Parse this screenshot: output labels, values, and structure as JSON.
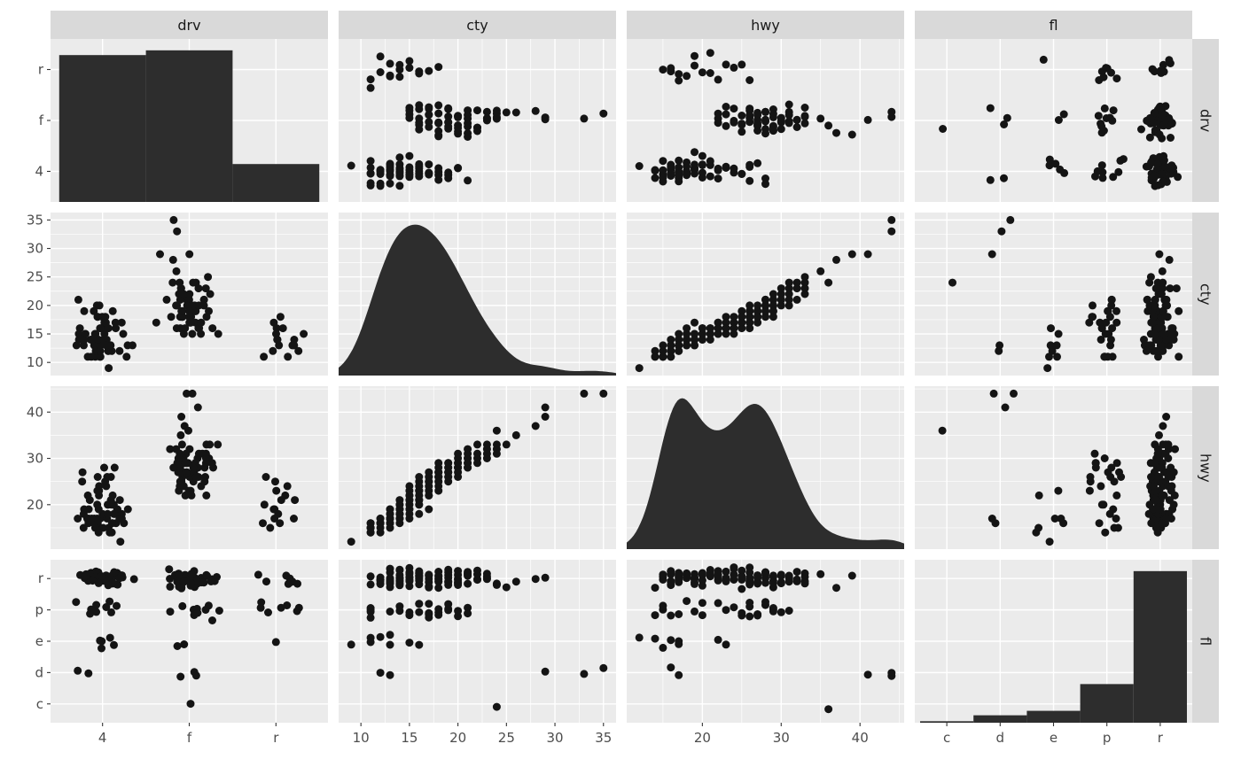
{
  "matrix": {
    "variables": [
      "drv",
      "cty",
      "hwy",
      "fl"
    ],
    "top_strips": [
      "drv",
      "cty",
      "hwy",
      "fl"
    ],
    "right_strips": [
      "drv",
      "cty",
      "hwy",
      "fl"
    ]
  },
  "axes": {
    "drv": {
      "type": "discrete",
      "categories": [
        "4",
        "f",
        "r"
      ]
    },
    "cty": {
      "type": "continuous",
      "ticks": [
        10,
        15,
        20,
        25,
        30,
        35
      ],
      "minor": [
        12.5,
        17.5,
        22.5,
        27.5,
        32.5
      ],
      "domain": [
        7.7,
        36.3
      ]
    },
    "hwy": {
      "type": "continuous",
      "ticks": [
        20,
        30,
        40
      ],
      "minor": [
        15,
        25,
        35,
        45
      ],
      "domain": [
        10.4,
        45.6
      ]
    },
    "fl": {
      "type": "discrete",
      "categories": [
        "c",
        "d",
        "e",
        "p",
        "r"
      ]
    }
  },
  "style": {
    "background": "#FFFFFF",
    "panel_bg": "#EBEBEB",
    "grid_major": "#FFFFFF",
    "grid_minor": "#FFFFFF",
    "strip_bg": "#D9D9D9",
    "strip_text": "#1A1A1A",
    "point": "#141414",
    "fill": "#2D2D2D",
    "tick_text": "#4D4D4D",
    "tick_mark": "#333333"
  },
  "chart_data": {
    "type": "scatterplot-matrix",
    "title": "",
    "columns": [
      "drv",
      "cty",
      "hwy",
      "fl"
    ],
    "diag": {
      "discrete": "bar",
      "continuous": "density",
      "cty_bandwidth": 1.8,
      "hwy_bandwidth": 1.9
    },
    "category_counts": {
      "drv": {
        "4": 62,
        "f": 64,
        "r": 16
      },
      "fl": {
        "c": 1,
        "d": 5,
        "e": 8,
        "p": 26,
        "r": 102
      }
    },
    "dataset": {
      "fields": [
        "drv",
        "cty",
        "hwy",
        "fl"
      ],
      "rows": [
        [
          "4",
          9,
          12,
          "e"
        ],
        [
          "4",
          11,
          15,
          "e"
        ],
        [
          "4",
          11,
          14,
          "e"
        ],
        [
          "4",
          12,
          16,
          "e"
        ],
        [
          "4",
          13,
          17,
          "e"
        ],
        [
          "4",
          13,
          17,
          "d"
        ],
        [
          "4",
          12,
          16,
          "d"
        ],
        [
          "4",
          11,
          15,
          "r"
        ],
        [
          "4",
          11,
          16,
          "r"
        ],
        [
          "4",
          11,
          15,
          "p"
        ],
        [
          "4",
          12,
          16,
          "r"
        ],
        [
          "4",
          12,
          17,
          "r"
        ],
        [
          "4",
          12,
          16,
          "r"
        ],
        [
          "4",
          12,
          15,
          "r"
        ],
        [
          "4",
          13,
          16,
          "r"
        ],
        [
          "4",
          13,
          17,
          "r"
        ],
        [
          "4",
          13,
          17,
          "r"
        ],
        [
          "4",
          13,
          18,
          "r"
        ],
        [
          "4",
          13,
          17,
          "r"
        ],
        [
          "4",
          13,
          16,
          "r"
        ],
        [
          "4",
          14,
          17,
          "r"
        ],
        [
          "4",
          14,
          18,
          "r"
        ],
        [
          "4",
          14,
          19,
          "r"
        ],
        [
          "4",
          14,
          17,
          "r"
        ],
        [
          "4",
          14,
          18,
          "r"
        ],
        [
          "4",
          14,
          17,
          "p"
        ],
        [
          "4",
          14,
          19,
          "r"
        ],
        [
          "4",
          14,
          18,
          "r"
        ],
        [
          "4",
          15,
          19,
          "r"
        ],
        [
          "4",
          15,
          20,
          "r"
        ],
        [
          "4",
          15,
          18,
          "r"
        ],
        [
          "4",
          15,
          20,
          "p"
        ],
        [
          "4",
          15,
          19,
          "r"
        ],
        [
          "4",
          15,
          21,
          "r"
        ],
        [
          "4",
          16,
          20,
          "r"
        ],
        [
          "4",
          16,
          21,
          "r"
        ],
        [
          "4",
          16,
          22,
          "r"
        ],
        [
          "4",
          16,
          20,
          "p"
        ],
        [
          "4",
          16,
          21,
          "r"
        ],
        [
          "4",
          17,
          22,
          "r"
        ],
        [
          "4",
          17,
          23,
          "r"
        ],
        [
          "4",
          17,
          22,
          "r"
        ],
        [
          "4",
          17,
          24,
          "p"
        ],
        [
          "4",
          18,
          24,
          "r"
        ],
        [
          "4",
          18,
          25,
          "r"
        ],
        [
          "4",
          18,
          23,
          "r"
        ],
        [
          "4",
          18,
          26,
          "p"
        ],
        [
          "4",
          19,
          25,
          "r"
        ],
        [
          "4",
          19,
          26,
          "r"
        ],
        [
          "4",
          19,
          27,
          "p"
        ],
        [
          "4",
          20,
          26,
          "r"
        ],
        [
          "4",
          20,
          28,
          "r"
        ],
        [
          "4",
          21,
          28,
          "p"
        ],
        [
          "4",
          14,
          16,
          "r"
        ],
        [
          "4",
          13,
          15,
          "r"
        ],
        [
          "4",
          12,
          14,
          "r"
        ],
        [
          "4",
          15,
          17,
          "r"
        ],
        [
          "4",
          16,
          18,
          "r"
        ],
        [
          "4",
          17,
          19,
          "r"
        ],
        [
          "4",
          11,
          14,
          "p"
        ],
        [
          "4",
          14,
          20,
          "r"
        ],
        [
          "4",
          13,
          19,
          "r"
        ],
        [
          "f",
          15,
          22,
          "r"
        ],
        [
          "f",
          15,
          23,
          "r"
        ],
        [
          "f",
          16,
          24,
          "r"
        ],
        [
          "f",
          16,
          25,
          "r"
        ],
        [
          "f",
          16,
          23,
          "r"
        ],
        [
          "f",
          17,
          25,
          "r"
        ],
        [
          "f",
          17,
          26,
          "r"
        ],
        [
          "f",
          17,
          24,
          "r"
        ],
        [
          "f",
          17,
          27,
          "r"
        ],
        [
          "f",
          18,
          26,
          "r"
        ],
        [
          "f",
          18,
          27,
          "r"
        ],
        [
          "f",
          18,
          25,
          "r"
        ],
        [
          "f",
          18,
          28,
          "r"
        ],
        [
          "f",
          18,
          26,
          "r"
        ],
        [
          "f",
          18,
          27,
          "r"
        ],
        [
          "f",
          19,
          27,
          "r"
        ],
        [
          "f",
          19,
          28,
          "r"
        ],
        [
          "f",
          19,
          26,
          "r"
        ],
        [
          "f",
          19,
          29,
          "r"
        ],
        [
          "f",
          19,
          27,
          "r"
        ],
        [
          "f",
          20,
          28,
          "r"
        ],
        [
          "f",
          20,
          29,
          "r"
        ],
        [
          "f",
          20,
          27,
          "r"
        ],
        [
          "f",
          20,
          30,
          "r"
        ],
        [
          "f",
          20,
          28,
          "r"
        ],
        [
          "f",
          21,
          29,
          "r"
        ],
        [
          "f",
          21,
          30,
          "r"
        ],
        [
          "f",
          21,
          28,
          "r"
        ],
        [
          "f",
          21,
          31,
          "r"
        ],
        [
          "f",
          21,
          29,
          "r"
        ],
        [
          "f",
          22,
          30,
          "r"
        ],
        [
          "f",
          22,
          31,
          "r"
        ],
        [
          "f",
          22,
          29,
          "r"
        ],
        [
          "f",
          23,
          31,
          "r"
        ],
        [
          "f",
          23,
          32,
          "r"
        ],
        [
          "f",
          23,
          30,
          "r"
        ],
        [
          "f",
          24,
          32,
          "r"
        ],
        [
          "f",
          24,
          33,
          "r"
        ],
        [
          "f",
          24,
          31,
          "r"
        ],
        [
          "f",
          25,
          33,
          "r"
        ],
        [
          "f",
          26,
          35,
          "r"
        ],
        [
          "f",
          28,
          37,
          "r"
        ],
        [
          "f",
          29,
          39,
          "r"
        ],
        [
          "f",
          33,
          44,
          "d"
        ],
        [
          "f",
          35,
          44,
          "d"
        ],
        [
          "f",
          29,
          41,
          "d"
        ],
        [
          "f",
          24,
          36,
          "c"
        ],
        [
          "f",
          15,
          22,
          "e"
        ],
        [
          "f",
          16,
          23,
          "e"
        ],
        [
          "f",
          16,
          26,
          "p"
        ],
        [
          "f",
          17,
          26,
          "p"
        ],
        [
          "f",
          18,
          27,
          "p"
        ],
        [
          "f",
          19,
          28,
          "p"
        ],
        [
          "f",
          20,
          29,
          "p"
        ],
        [
          "f",
          21,
          30,
          "p"
        ],
        [
          "f",
          19,
          29,
          "p"
        ],
        [
          "f",
          18,
          29,
          "p"
        ],
        [
          "f",
          20,
          31,
          "p"
        ],
        [
          "f",
          17,
          25,
          "p"
        ],
        [
          "f",
          21,
          32,
          "r"
        ],
        [
          "f",
          22,
          33,
          "r"
        ],
        [
          "f",
          23,
          33,
          "r"
        ],
        [
          "f",
          16,
          22,
          "r"
        ],
        [
          "f",
          15,
          24,
          "r"
        ],
        [
          "r",
          11,
          15,
          "p"
        ],
        [
          "r",
          11,
          16,
          "p"
        ],
        [
          "r",
          12,
          17,
          "r"
        ],
        [
          "r",
          13,
          19,
          "r"
        ],
        [
          "r",
          13,
          18,
          "p"
        ],
        [
          "r",
          14,
          20,
          "r"
        ],
        [
          "r",
          14,
          21,
          "r"
        ],
        [
          "r",
          15,
          22,
          "p"
        ],
        [
          "r",
          15,
          21,
          "r"
        ],
        [
          "r",
          16,
          23,
          "p"
        ],
        [
          "r",
          16,
          24,
          "r"
        ],
        [
          "r",
          17,
          25,
          "p"
        ],
        [
          "r",
          18,
          26,
          "r"
        ],
        [
          "r",
          12,
          16,
          "r"
        ],
        [
          "r",
          14,
          19,
          "p"
        ],
        [
          "r",
          13,
          17,
          "e"
        ]
      ]
    }
  }
}
